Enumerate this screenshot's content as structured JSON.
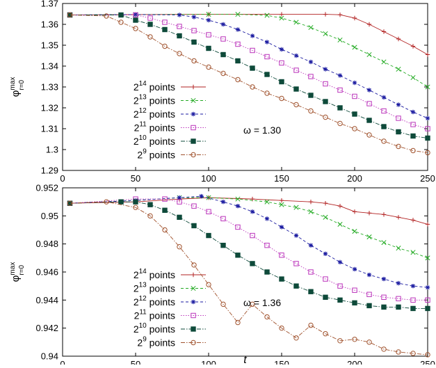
{
  "chart_data": [
    {
      "type": "line",
      "xlabel": "",
      "ylabel_main": "φ",
      "ylabel_sup": "max",
      "ylabel_sub": "r=0",
      "xlim": [
        0,
        250
      ],
      "ylim": [
        1.29,
        1.37
      ],
      "x_ticks": [
        0,
        50,
        100,
        150,
        200,
        250
      ],
      "y_ticks": [
        1.29,
        1.3,
        1.31,
        1.32,
        1.33,
        1.34,
        1.35,
        1.36,
        1.37
      ],
      "y_tick_labels": [
        "1.29",
        "1.3",
        "1.31",
        "1.32",
        "1.33",
        "1.34",
        "1.35",
        "1.36",
        "1.37"
      ],
      "annotation": "ω = 1.30",
      "grid": false,
      "legend_position": "left-lower",
      "series": [
        {
          "name_base": "2",
          "name_exp": "14",
          "name_tail": " points",
          "color": "#b22222",
          "marker": "plus",
          "x": [
            5,
            50,
            100,
            150,
            180,
            190,
            200,
            210,
            220,
            230,
            240,
            250
          ],
          "y": [
            1.3645,
            1.3647,
            1.3648,
            1.3648,
            1.3648,
            1.3646,
            1.363,
            1.36,
            1.3565,
            1.353,
            1.3495,
            1.3455
          ]
        },
        {
          "name_base": "2",
          "name_exp": "13",
          "name_tail": " points",
          "color": "#22aa22",
          "marker": "x",
          "x": [
            5,
            50,
            100,
            120,
            140,
            150,
            160,
            170,
            180,
            190,
            200,
            210,
            220,
            230,
            240,
            250
          ],
          "y": [
            1.3645,
            1.3647,
            1.3648,
            1.3648,
            1.3643,
            1.363,
            1.361,
            1.3585,
            1.3555,
            1.3525,
            1.349,
            1.3455,
            1.342,
            1.3385,
            1.3345,
            1.33
          ]
        },
        {
          "name_base": "2",
          "name_exp": "12",
          "name_tail": " points",
          "color": "#1a1aa0",
          "marker": "star",
          "x": [
            5,
            50,
            80,
            90,
            100,
            110,
            120,
            130,
            140,
            150,
            160,
            170,
            180,
            190,
            200,
            210,
            220,
            230,
            240,
            250
          ],
          "y": [
            1.3645,
            1.3647,
            1.3645,
            1.3635,
            1.362,
            1.36,
            1.3575,
            1.3545,
            1.3515,
            1.348,
            1.345,
            1.342,
            1.3385,
            1.3355,
            1.332,
            1.3285,
            1.325,
            1.3215,
            1.318,
            1.315
          ]
        },
        {
          "name_base": "2",
          "name_exp": "11",
          "name_tail": " points",
          "color": "#bb33bb",
          "marker": "square-open",
          "x": [
            5,
            50,
            60,
            70,
            80,
            90,
            100,
            110,
            120,
            130,
            140,
            150,
            160,
            170,
            180,
            190,
            200,
            210,
            220,
            230,
            240,
            250
          ],
          "y": [
            1.3645,
            1.3645,
            1.363,
            1.361,
            1.359,
            1.357,
            1.355,
            1.353,
            1.3505,
            1.3475,
            1.3445,
            1.3415,
            1.338,
            1.335,
            1.3315,
            1.3285,
            1.3255,
            1.322,
            1.3185,
            1.315,
            1.312,
            1.31
          ]
        },
        {
          "name_base": "2",
          "name_exp": "10",
          "name_tail": " points",
          "color": "#0e4a3a",
          "marker": "square-filled",
          "x": [
            5,
            40,
            50,
            60,
            70,
            80,
            90,
            100,
            110,
            120,
            130,
            140,
            150,
            160,
            170,
            180,
            190,
            200,
            210,
            220,
            230,
            240,
            250
          ],
          "y": [
            1.3645,
            1.3645,
            1.362,
            1.36,
            1.3575,
            1.3545,
            1.3515,
            1.3485,
            1.3455,
            1.3425,
            1.339,
            1.336,
            1.3325,
            1.329,
            1.326,
            1.323,
            1.32,
            1.317,
            1.314,
            1.311,
            1.3085,
            1.3065,
            1.3055
          ]
        },
        {
          "name_base": "2",
          "name_exp": "9",
          "name_tail": " points",
          "color": "#a0522d",
          "marker": "circle-open",
          "x": [
            5,
            30,
            40,
            50,
            60,
            70,
            80,
            90,
            100,
            110,
            120,
            130,
            140,
            150,
            160,
            170,
            180,
            190,
            200,
            210,
            220,
            230,
            240,
            250
          ],
          "y": [
            1.3645,
            1.364,
            1.361,
            1.358,
            1.354,
            1.3495,
            1.346,
            1.3425,
            1.3395,
            1.3365,
            1.3335,
            1.33,
            1.327,
            1.3245,
            1.3215,
            1.3185,
            1.3155,
            1.3125,
            1.31,
            1.307,
            1.304,
            1.3015,
            1.2995,
            1.2985
          ]
        }
      ]
    },
    {
      "type": "line",
      "xlabel": "t",
      "ylabel_main": "φ",
      "ylabel_sup": "max",
      "ylabel_sub": "r=0",
      "xlim": [
        0,
        250
      ],
      "ylim": [
        0.94,
        0.952
      ],
      "x_ticks": [
        0,
        50,
        100,
        150,
        200,
        250
      ],
      "y_ticks": [
        0.94,
        0.942,
        0.944,
        0.946,
        0.948,
        0.95,
        0.952
      ],
      "y_tick_labels": [
        "0.94",
        "0.942",
        "0.944",
        "0.946",
        "0.948",
        "0.95",
        "0.952"
      ],
      "annotation": "ω = 1.36",
      "grid": false,
      "legend_position": "left-lower",
      "series": [
        {
          "name_base": "2",
          "name_exp": "14",
          "name_tail": " points",
          "color": "#b22222",
          "marker": "plus",
          "x": [
            5,
            50,
            80,
            100,
            130,
            150,
            170,
            180,
            190,
            200,
            210,
            220,
            230,
            240,
            250
          ],
          "y": [
            0.9509,
            0.951,
            0.9512,
            0.9513,
            0.9512,
            0.9511,
            0.951,
            0.9509,
            0.9507,
            0.9503,
            0.9502,
            0.9501,
            0.9499,
            0.9497,
            0.9494
          ]
        },
        {
          "name_base": "2",
          "name_exp": "13",
          "name_tail": " points",
          "color": "#22aa22",
          "marker": "x",
          "x": [
            5,
            50,
            80,
            100,
            120,
            140,
            150,
            160,
            170,
            180,
            190,
            200,
            210,
            220,
            230,
            240,
            250
          ],
          "y": [
            0.9509,
            0.9511,
            0.9513,
            0.9513,
            0.9512,
            0.951,
            0.9508,
            0.9506,
            0.9503,
            0.9499,
            0.9494,
            0.9489,
            0.9485,
            0.9481,
            0.9477,
            0.9474,
            0.947
          ]
        },
        {
          "name_base": "2",
          "name_exp": "12",
          "name_tail": " points",
          "color": "#1a1aa0",
          "marker": "star",
          "x": [
            5,
            50,
            80,
            95,
            110,
            120,
            130,
            140,
            150,
            160,
            170,
            180,
            190,
            200,
            210,
            220,
            230,
            240,
            250
          ],
          "y": [
            0.9509,
            0.9511,
            0.9513,
            0.9514,
            0.951,
            0.9507,
            0.9503,
            0.9498,
            0.9492,
            0.9486,
            0.9479,
            0.9473,
            0.9467,
            0.9462,
            0.9458,
            0.9455,
            0.9452,
            0.945,
            0.9449
          ]
        },
        {
          "name_base": "2",
          "name_exp": "11",
          "name_tail": " points",
          "color": "#bb33bb",
          "marker": "square-open",
          "x": [
            5,
            50,
            70,
            80,
            90,
            100,
            110,
            120,
            130,
            140,
            150,
            160,
            170,
            180,
            190,
            200,
            210,
            220,
            230,
            240,
            250
          ],
          "y": [
            0.9509,
            0.9512,
            0.9512,
            0.951,
            0.9507,
            0.9503,
            0.9498,
            0.9492,
            0.9486,
            0.9479,
            0.9472,
            0.9466,
            0.946,
            0.9455,
            0.945,
            0.9447,
            0.9444,
            0.9442,
            0.9441,
            0.944,
            0.944
          ]
        },
        {
          "name_base": "2",
          "name_exp": "10",
          "name_tail": " points",
          "color": "#0e4a3a",
          "marker": "square-filled",
          "x": [
            5,
            40,
            50,
            60,
            70,
            80,
            90,
            100,
            110,
            120,
            130,
            140,
            150,
            160,
            170,
            180,
            190,
            200,
            210,
            220,
            230,
            240,
            250
          ],
          "y": [
            0.9509,
            0.951,
            0.951,
            0.9508,
            0.9504,
            0.9499,
            0.9493,
            0.9486,
            0.9479,
            0.9472,
            0.9466,
            0.946,
            0.9455,
            0.945,
            0.9446,
            0.9442,
            0.944,
            0.9438,
            0.9436,
            0.9435,
            0.9435,
            0.9434,
            0.9434
          ]
        },
        {
          "name_base": "2",
          "name_exp": "9",
          "name_tail": " points",
          "color": "#a0522d",
          "marker": "circle-open",
          "x": [
            5,
            30,
            50,
            60,
            70,
            80,
            90,
            100,
            110,
            120,
            130,
            140,
            150,
            160,
            170,
            180,
            190,
            200,
            210,
            220,
            230,
            240,
            250
          ],
          "y": [
            0.9509,
            0.951,
            0.9506,
            0.95,
            0.949,
            0.9478,
            0.9465,
            0.9451,
            0.9437,
            0.9424,
            0.9437,
            0.9428,
            0.942,
            0.9413,
            0.9422,
            0.9416,
            0.9411,
            0.9412,
            0.941,
            0.9405,
            0.9403,
            0.9402,
            0.9401
          ]
        }
      ]
    }
  ]
}
